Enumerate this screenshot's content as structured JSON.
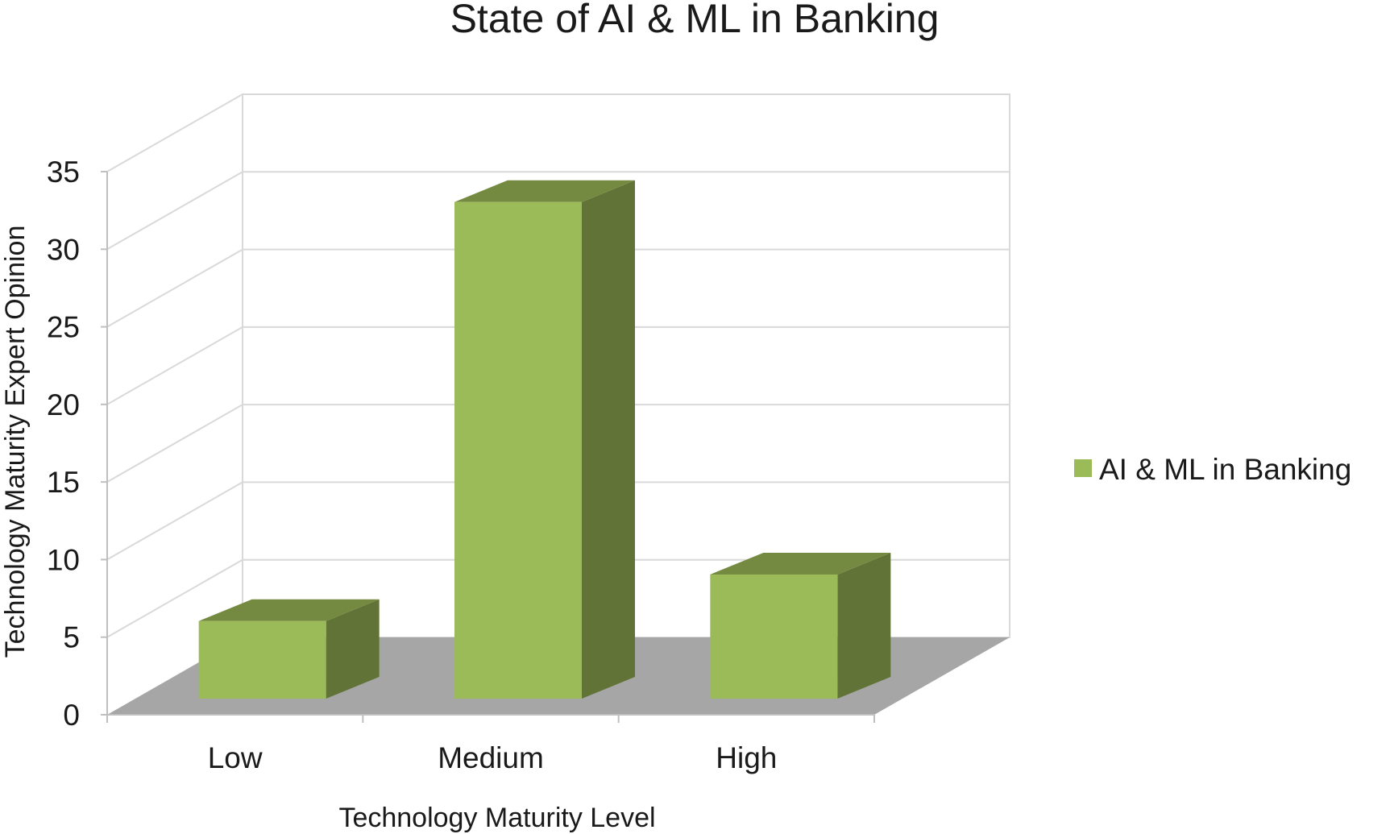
{
  "chart_data": {
    "type": "bar",
    "title": "State of AI & ML in Banking",
    "xlabel": "Technology Maturity Level",
    "ylabel": "Technology Maturity  Expert Opinion",
    "categories": [
      "Low",
      "Medium",
      "High"
    ],
    "series": [
      {
        "name": "AI & ML in Banking",
        "values": [
          5,
          32,
          8
        ]
      }
    ],
    "ylim": [
      0,
      35
    ],
    "yticks": [
      "0",
      "5",
      "10",
      "15",
      "20",
      "25",
      "30",
      "35"
    ],
    "grid": true,
    "legend": "right",
    "style": "3d-column",
    "colors": {
      "bar_front": "#9bbb59",
      "bar_side": "#627337",
      "bar_top": "#748a40",
      "floor": "#a6a6a6",
      "grid": "#d9d9d9",
      "frame": "#bfbfbf"
    }
  }
}
